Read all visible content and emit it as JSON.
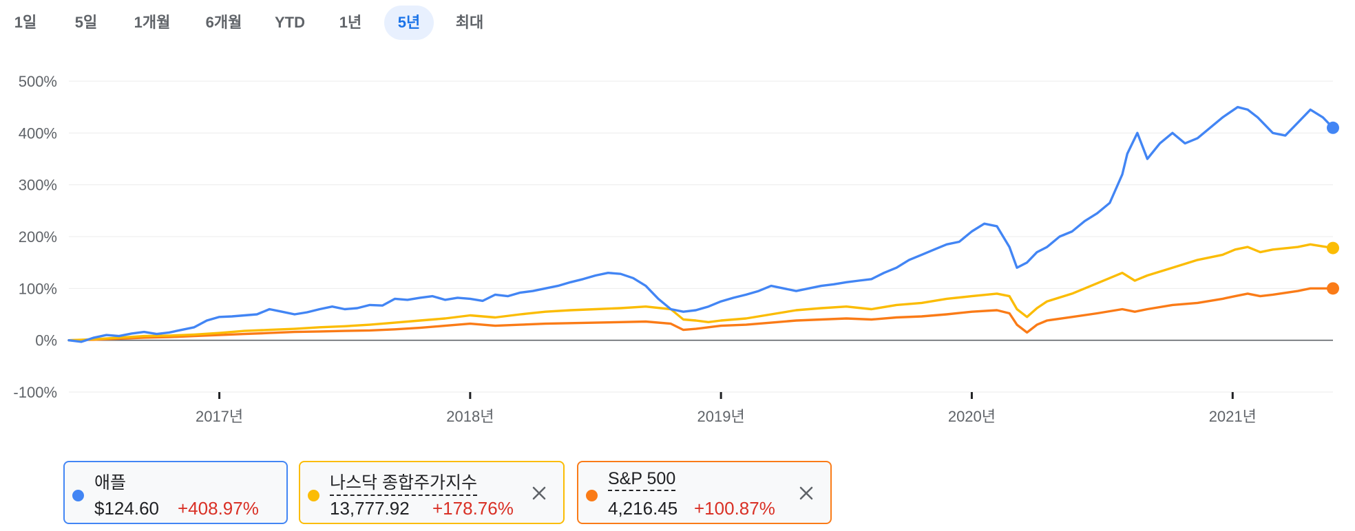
{
  "range_tabs": [
    {
      "label": "1일",
      "selected": false
    },
    {
      "label": "5일",
      "selected": false
    },
    {
      "label": "1개월",
      "selected": false
    },
    {
      "label": "6개월",
      "selected": false
    },
    {
      "label": "YTD",
      "selected": false
    },
    {
      "label": "1년",
      "selected": false
    },
    {
      "label": "5년",
      "selected": true
    },
    {
      "label": "최대",
      "selected": false
    }
  ],
  "colors": {
    "apple": "#4285f4",
    "nasdaq": "#fbbc04",
    "sp500": "#fa7b17",
    "positive_change": "#d93025",
    "zero_line": "#5f6368",
    "grid": "#ebebeb",
    "tick_text": "#5f6368",
    "selected_tab_bg": "#e8f0fe",
    "selected_tab_text": "#1a73e8"
  },
  "chart_data": {
    "type": "line",
    "title": "",
    "xlabel": "",
    "ylabel": "",
    "y_ticks": [
      {
        "value": 500,
        "label": "500%"
      },
      {
        "value": 400,
        "label": "400%"
      },
      {
        "value": 300,
        "label": "300%"
      },
      {
        "value": 200,
        "label": "200%"
      },
      {
        "value": 100,
        "label": "100%"
      },
      {
        "value": 0,
        "label": "0%"
      },
      {
        "value": -100,
        "label": "-100%"
      }
    ],
    "ylim": [
      -100,
      500
    ],
    "xlim": [
      2016.4,
      2021.44
    ],
    "x_ticks": [
      {
        "value": 2017.0,
        "label": "2017년"
      },
      {
        "value": 2018.0,
        "label": "2018년"
      },
      {
        "value": 2019.0,
        "label": "2019년"
      },
      {
        "value": 2020.0,
        "label": "2020년"
      },
      {
        "value": 2021.04,
        "label": "2021년"
      }
    ],
    "grid": true,
    "legend_placement": "bottom",
    "series": [
      {
        "key": "apple",
        "x": [
          2016.4,
          2016.45,
          2016.5,
          2016.55,
          2016.6,
          2016.65,
          2016.7,
          2016.75,
          2016.8,
          2016.85,
          2016.9,
          2016.95,
          2017.0,
          2017.05,
          2017.1,
          2017.15,
          2017.2,
          2017.25,
          2017.3,
          2017.35,
          2017.4,
          2017.45,
          2017.5,
          2017.55,
          2017.6,
          2017.65,
          2017.7,
          2017.75,
          2017.8,
          2017.85,
          2017.9,
          2017.95,
          2018.0,
          2018.05,
          2018.1,
          2018.15,
          2018.2,
          2018.25,
          2018.3,
          2018.35,
          2018.4,
          2018.45,
          2018.5,
          2018.55,
          2018.6,
          2018.65,
          2018.7,
          2018.75,
          2018.8,
          2018.85,
          2018.9,
          2018.95,
          2019.0,
          2019.05,
          2019.1,
          2019.15,
          2019.2,
          2019.25,
          2019.3,
          2019.35,
          2019.4,
          2019.45,
          2019.5,
          2019.55,
          2019.6,
          2019.65,
          2019.7,
          2019.75,
          2019.8,
          2019.85,
          2019.9,
          2019.95,
          2020.0,
          2020.05,
          2020.1,
          2020.15,
          2020.18,
          2020.22,
          2020.26,
          2020.3,
          2020.35,
          2020.4,
          2020.45,
          2020.5,
          2020.55,
          2020.6,
          2020.62,
          2020.66,
          2020.7,
          2020.75,
          2020.8,
          2020.85,
          2020.9,
          2020.95,
          2021.0,
          2021.03,
          2021.06,
          2021.1,
          2021.14,
          2021.2,
          2021.25,
          2021.3,
          2021.35,
          2021.4,
          2021.44
        ],
        "y": [
          0,
          -3,
          5,
          10,
          8,
          13,
          16,
          12,
          15,
          20,
          25,
          38,
          45,
          46,
          48,
          50,
          60,
          55,
          50,
          54,
          60,
          65,
          60,
          62,
          68,
          67,
          80,
          78,
          82,
          85,
          78,
          82,
          80,
          76,
          88,
          85,
          92,
          95,
          100,
          105,
          112,
          118,
          125,
          130,
          128,
          120,
          105,
          80,
          60,
          55,
          58,
          65,
          75,
          82,
          88,
          95,
          105,
          100,
          95,
          100,
          105,
          108,
          112,
          115,
          118,
          130,
          140,
          155,
          165,
          175,
          185,
          190,
          210,
          225,
          220,
          180,
          140,
          150,
          170,
          180,
          200,
          210,
          230,
          245,
          265,
          320,
          360,
          400,
          350,
          380,
          400,
          380,
          390,
          410,
          430,
          440,
          450,
          445,
          430,
          400,
          395,
          420,
          445,
          430,
          410
        ]
      },
      {
        "key": "nasdaq",
        "x": [
          2016.4,
          2016.5,
          2016.6,
          2016.7,
          2016.8,
          2016.9,
          2017.0,
          2017.1,
          2017.2,
          2017.3,
          2017.4,
          2017.5,
          2017.6,
          2017.7,
          2017.8,
          2017.9,
          2018.0,
          2018.1,
          2018.2,
          2018.3,
          2018.4,
          2018.5,
          2018.6,
          2018.7,
          2018.8,
          2018.85,
          2018.9,
          2018.95,
          2019.0,
          2019.1,
          2019.2,
          2019.3,
          2019.4,
          2019.5,
          2019.6,
          2019.7,
          2019.8,
          2019.9,
          2020.0,
          2020.1,
          2020.15,
          2020.18,
          2020.22,
          2020.26,
          2020.3,
          2020.4,
          2020.5,
          2020.6,
          2020.65,
          2020.7,
          2020.8,
          2020.9,
          2021.0,
          2021.05,
          2021.1,
          2021.15,
          2021.2,
          2021.3,
          2021.35,
          2021.44
        ],
        "y": [
          0,
          2,
          5,
          8,
          9,
          11,
          14,
          18,
          20,
          22,
          25,
          27,
          30,
          34,
          38,
          42,
          48,
          44,
          50,
          55,
          58,
          60,
          62,
          65,
          60,
          40,
          38,
          35,
          38,
          42,
          50,
          58,
          62,
          65,
          60,
          68,
          72,
          80,
          85,
          90,
          85,
          60,
          45,
          62,
          75,
          90,
          110,
          130,
          115,
          125,
          140,
          155,
          165,
          175,
          180,
          170,
          175,
          180,
          185,
          178
        ]
      },
      {
        "key": "sp500",
        "x": [
          2016.4,
          2016.5,
          2016.6,
          2016.7,
          2016.8,
          2016.9,
          2017.0,
          2017.1,
          2017.2,
          2017.3,
          2017.4,
          2017.5,
          2017.6,
          2017.7,
          2017.8,
          2017.9,
          2018.0,
          2018.1,
          2018.2,
          2018.3,
          2018.4,
          2018.5,
          2018.6,
          2018.7,
          2018.8,
          2018.85,
          2018.9,
          2018.95,
          2019.0,
          2019.1,
          2019.2,
          2019.3,
          2019.4,
          2019.5,
          2019.6,
          2019.7,
          2019.8,
          2019.9,
          2020.0,
          2020.1,
          2020.15,
          2020.18,
          2020.22,
          2020.26,
          2020.3,
          2020.4,
          2020.5,
          2020.6,
          2020.65,
          2020.7,
          2020.8,
          2020.9,
          2021.0,
          2021.05,
          2021.1,
          2021.15,
          2021.2,
          2021.3,
          2021.35,
          2021.44
        ],
        "y": [
          0,
          1,
          3,
          5,
          6,
          8,
          10,
          12,
          14,
          16,
          17,
          18,
          19,
          21,
          24,
          28,
          32,
          28,
          30,
          32,
          33,
          34,
          35,
          36,
          32,
          20,
          22,
          25,
          28,
          30,
          34,
          38,
          40,
          42,
          40,
          44,
          46,
          50,
          55,
          58,
          52,
          30,
          15,
          30,
          38,
          45,
          52,
          60,
          55,
          60,
          68,
          72,
          80,
          85,
          90,
          85,
          88,
          95,
          100,
          100
        ]
      }
    ]
  },
  "legend": [
    {
      "key": "apple",
      "name": "애플",
      "price": "$124.60",
      "change": "+408.97%",
      "removable": false,
      "underlined": false
    },
    {
      "key": "nasdaq",
      "name": "나스닥 종합주가지수",
      "price": "13,777.92",
      "change": "+178.76%",
      "removable": true,
      "underlined": true
    },
    {
      "key": "sp500",
      "name": "S&P 500",
      "price": "4,216.45",
      "change": "+100.87%",
      "removable": true,
      "underlined": true
    }
  ]
}
